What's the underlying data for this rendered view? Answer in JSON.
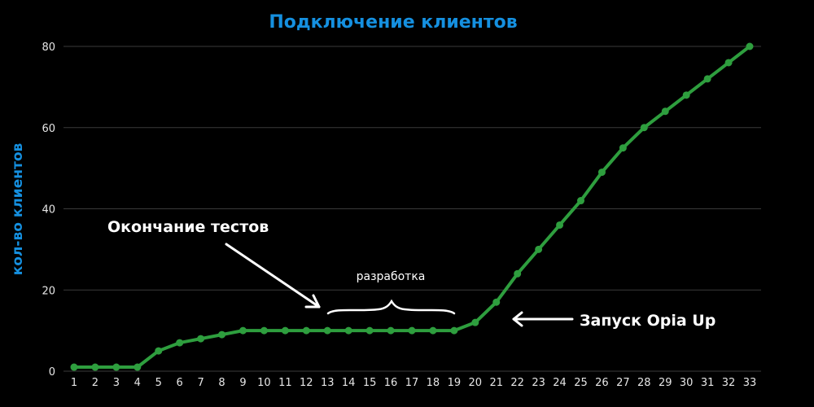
{
  "chart_data": {
    "type": "line",
    "title": "Подключение клиентов",
    "ylabel": "кол-во клиентов",
    "xlabel": "",
    "ylim": [
      0,
      80
    ],
    "yticks": [
      0,
      20,
      40,
      60,
      80
    ],
    "grid": true,
    "x": [
      1,
      2,
      3,
      4,
      5,
      6,
      7,
      8,
      9,
      10,
      11,
      12,
      13,
      14,
      15,
      16,
      17,
      18,
      19,
      20,
      21,
      22,
      23,
      24,
      25,
      26,
      27,
      28,
      29,
      30,
      31,
      32,
      33
    ],
    "series": [
      {
        "values": [
          1,
          1,
          1,
          1,
          5,
          7,
          8,
          9,
          10,
          10,
          10,
          10,
          10,
          10,
          10,
          10,
          10,
          10,
          10,
          12,
          17,
          24,
          30,
          36,
          42,
          49,
          55,
          60,
          64,
          68,
          72,
          76,
          80
        ]
      }
    ],
    "annotations": {
      "tests_end": "Окончание тестов",
      "development": "разработка",
      "launch": "Запуск Opia Up"
    }
  },
  "colors": {
    "background": "#000000",
    "accent": "#1590e0",
    "line": "#2e9e3e",
    "grid": "#3a3a3a",
    "text": "#ffffff"
  }
}
